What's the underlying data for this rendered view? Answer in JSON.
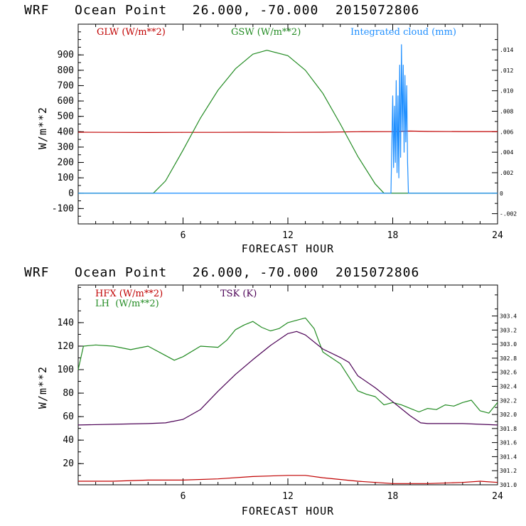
{
  "colors": {
    "red": "#c00000",
    "green": "#228B22",
    "blue": "#1f8fff",
    "purple": "#4b0055",
    "axis": "#000000"
  },
  "chart_data": [
    {
      "type": "line",
      "title": "WRF   Ocean Point   26.000, -70.000  2015072806",
      "xlabel": "FORECAST HOUR",
      "ylabel": "W/m**2",
      "xlim": [
        0,
        24
      ],
      "xticks": [
        6,
        12,
        18,
        24
      ],
      "xtick_labels": [
        "6",
        "12",
        "18",
        "24"
      ],
      "ylim": [
        -200,
        1100
      ],
      "yticks": [
        -100,
        0,
        100,
        200,
        300,
        400,
        500,
        600,
        700,
        800,
        900
      ],
      "ytick_labels": [
        "-100",
        "0",
        "100",
        "200",
        "300",
        "400",
        "500",
        "600",
        "700",
        "800",
        "900"
      ],
      "y2label": "Integrated cloud (mm)",
      "y2lim": [
        -0.003,
        0.0165
      ],
      "y2ticks": [
        -0.002,
        0,
        0.002,
        0.004,
        0.006,
        0.008,
        0.01,
        0.012,
        0.014
      ],
      "y2tick_labels": [
        "-.002",
        "0",
        ".002",
        ".004",
        ".006",
        ".008",
        ".010",
        ".012",
        ".014"
      ],
      "legend": [
        "GLW (W/m**2)",
        "GSW (W/m**2)",
        "Integrated cloud (mm)"
      ],
      "series": [
        {
          "name": "GLW (W/m**2)",
          "color": "red",
          "axis": "left",
          "x": [
            0,
            2,
            4,
            6,
            8,
            10,
            12,
            14,
            16,
            18,
            19,
            20,
            22,
            24
          ],
          "y": [
            397,
            396,
            395,
            396,
            396,
            397,
            396,
            397,
            400,
            401,
            404,
            402,
            401,
            401
          ]
        },
        {
          "name": "GSW (W/m**2)",
          "color": "green",
          "axis": "left",
          "x": [
            0,
            4.3,
            5,
            6,
            7,
            8,
            9,
            10,
            10.8,
            12,
            13,
            14,
            15,
            16,
            17,
            17.5,
            24
          ],
          "y": [
            0,
            0,
            80,
            280,
            490,
            670,
            810,
            905,
            930,
            895,
            800,
            650,
            450,
            240,
            60,
            0,
            0
          ]
        },
        {
          "name": "Integrated cloud (mm)",
          "color": "blue",
          "axis": "right",
          "x": [
            0,
            17.9,
            18.0,
            18.05,
            18.1,
            18.15,
            18.2,
            18.25,
            18.3,
            18.35,
            18.4,
            18.45,
            18.5,
            18.55,
            18.6,
            18.65,
            18.7,
            18.75,
            18.8,
            18.85,
            18.9,
            24
          ],
          "y": [
            0,
            0,
            0.0095,
            0.0025,
            0.0085,
            0.003,
            0.011,
            0.002,
            0.0095,
            0.0015,
            0.0125,
            0.0035,
            0.0145,
            0.006,
            0.0125,
            0.004,
            0.0115,
            0.005,
            0.0105,
            0.003,
            0,
            0
          ]
        }
      ]
    },
    {
      "type": "line",
      "title": "WRF   Ocean Point   26.000, -70.000  2015072806",
      "xlabel": "FORECAST HOUR",
      "ylabel": "W/m**2",
      "xlim": [
        0,
        24
      ],
      "xticks": [
        6,
        12,
        18,
        24
      ],
      "xtick_labels": [
        "6",
        "12",
        "18",
        "24"
      ],
      "ylim": [
        2,
        172
      ],
      "yticks": [
        20,
        40,
        60,
        80,
        100,
        120,
        140
      ],
      "ytick_labels": [
        "20",
        "40",
        "60",
        "80",
        "100",
        "120",
        "140"
      ],
      "y2label": "TSK (K)",
      "y2lim": [
        301.0,
        303.84
      ],
      "y2ticks": [
        301.0,
        301.2,
        301.4,
        301.6,
        301.8,
        302.0,
        302.2,
        302.4,
        302.6,
        302.8,
        303.0,
        303.2,
        303.4
      ],
      "y2tick_labels": [
        "301.0",
        "301.2",
        "301.4",
        "301.6",
        "301.8",
        "302.0",
        "302.2",
        "302.4",
        "302.6",
        "302.8",
        "303.0",
        "303.2",
        "303.4"
      ],
      "legend": [
        "HFX (W/m**2)",
        "LH  (W/m**2)",
        "TSK (K)"
      ],
      "series": [
        {
          "name": "HFX (W/m**2)",
          "color": "red",
          "axis": "left",
          "x": [
            0,
            2,
            4,
            6,
            8,
            10,
            12,
            13,
            14,
            16,
            18,
            20,
            22,
            23,
            24
          ],
          "y": [
            5,
            5,
            6,
            6,
            7,
            9,
            10,
            10,
            8,
            5,
            3,
            3,
            4,
            5,
            4
          ]
        },
        {
          "name": "LH  (W/m**2)",
          "color": "green",
          "axis": "left",
          "x": [
            0,
            0.3,
            1,
            2,
            3,
            4,
            5,
            5.5,
            6,
            7,
            8,
            8.5,
            9,
            9.5,
            10,
            10.5,
            11,
            11.5,
            12,
            12.5,
            13,
            13.5,
            14,
            15,
            16,
            16.5,
            17,
            17.5,
            18,
            18.5,
            19,
            19.5,
            20,
            20.5,
            21,
            21.5,
            22,
            22.5,
            23,
            23.5,
            24
          ],
          "y": [
            100,
            120,
            121,
            120,
            117,
            120,
            112,
            108,
            111,
            120,
            119,
            125,
            134,
            138,
            141,
            136,
            133,
            135,
            140,
            142,
            144,
            135,
            115,
            105,
            82,
            79,
            77,
            70,
            72,
            70,
            67,
            64,
            67,
            66,
            70,
            69,
            72,
            74,
            65,
            63,
            72
          ]
        },
        {
          "name": "TSK (K)",
          "color": "purple",
          "axis": "right",
          "x": [
            0,
            2,
            4,
            5,
            6,
            7,
            8,
            9,
            10,
            11,
            12,
            12.5,
            13,
            14,
            15,
            15.5,
            16,
            17,
            18,
            19,
            19.6,
            20,
            22,
            24
          ],
          "y": [
            301.85,
            301.86,
            301.87,
            301.88,
            301.93,
            302.07,
            302.33,
            302.57,
            302.78,
            302.98,
            303.15,
            303.18,
            303.13,
            302.93,
            302.81,
            302.74,
            302.55,
            302.38,
            302.18,
            301.98,
            301.88,
            301.87,
            301.87,
            301.85
          ]
        }
      ]
    }
  ]
}
